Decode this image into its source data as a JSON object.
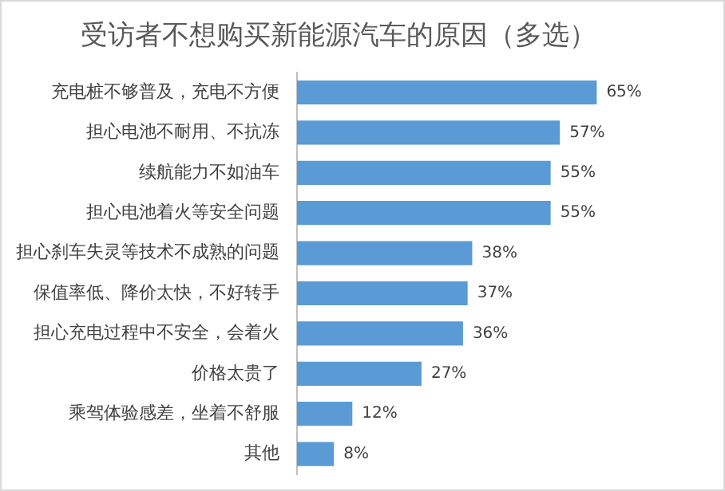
{
  "chart_data": {
    "type": "bar",
    "orientation": "horizontal",
    "title": "受访者不想购买新能源汽车的原因（多选）",
    "categories": [
      "充电桩不够普及，充电不方便",
      "担心电池不耐用、不抗冻",
      "续航能力不如油车",
      "担心电池着火等安全问题",
      "担心刹车失灵等技术不成熟的问题",
      "保值率低、降价太快，不好转手",
      "担心充电过程中不安全，会着火",
      "价格太贵了",
      "乘驾体验感差，坐着不舒服",
      "其他"
    ],
    "values": [
      65,
      57,
      55,
      55,
      38,
      37,
      36,
      27,
      12,
      8
    ],
    "value_labels": [
      "65%",
      "57%",
      "55%",
      "55%",
      "38%",
      "37%",
      "36%",
      "27%",
      "12%",
      "8%"
    ],
    "color": "#5b9bd5",
    "grid": false,
    "legend": false,
    "tick_labels": "y"
  }
}
